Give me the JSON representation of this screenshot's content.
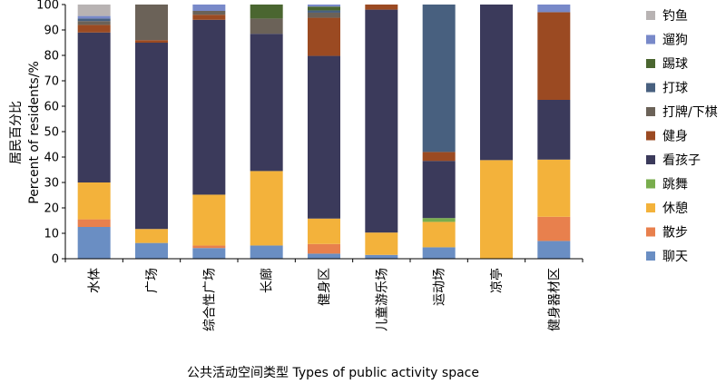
{
  "chart_data": {
    "type": "bar",
    "stacked": true,
    "ylabel_cn": "居民百分比",
    "ylabel_en": "Percent of residents/%",
    "xlabel": "公共活动空间类型 Types of public activity space",
    "ylim": [
      0,
      100
    ],
    "yticks": [
      "0",
      "10",
      "20",
      "30",
      "40",
      "50",
      "60",
      "70",
      "80",
      "90",
      "100"
    ],
    "grid": false,
    "legend_position": "right",
    "categories": [
      "水体",
      "广场",
      "综合性广场",
      "长廊",
      "健身区",
      "儿童游乐场",
      "运动场",
      "凉亭",
      "健身器材区"
    ],
    "series": [
      {
        "name": "聊天",
        "color": "#6a8ec3",
        "values": [
          12.5,
          6.2,
          4.2,
          5.2,
          2.0,
          1.5,
          4.5,
          0.0,
          7.0
        ]
      },
      {
        "name": "散步",
        "color": "#e8804d",
        "values": [
          3.0,
          0.0,
          1.0,
          0.0,
          3.8,
          0.0,
          0.0,
          0.0,
          9.5
        ]
      },
      {
        "name": "休憩",
        "color": "#f3b23b",
        "values": [
          14.5,
          5.5,
          20.0,
          29.3,
          10.0,
          8.8,
          10.0,
          38.8,
          22.5
        ]
      },
      {
        "name": "跳舞",
        "color": "#79ad4d",
        "values": [
          0.0,
          0.0,
          0.0,
          0.0,
          0.0,
          0.0,
          1.5,
          0.0,
          0.0
        ]
      },
      {
        "name": "看孩子",
        "color": "#3b3a5b",
        "values": [
          59.0,
          73.3,
          68.8,
          54.0,
          64.0,
          87.7,
          22.5,
          61.2,
          23.5
        ]
      },
      {
        "name": "健身",
        "color": "#9b4a22",
        "values": [
          3.0,
          1.0,
          2.0,
          0.0,
          15.0,
          2.0,
          3.5,
          0.0,
          34.5
        ]
      },
      {
        "name": "打牌/下棋",
        "color": "#6b6258",
        "values": [
          1.5,
          14.0,
          1.5,
          6.0,
          2.0,
          0.0,
          0.0,
          0.0,
          0.0
        ]
      },
      {
        "name": "打球",
        "color": "#48607f",
        "values": [
          1.0,
          0.0,
          0.0,
          0.0,
          0.9,
          0.0,
          58.0,
          0.0,
          0.0
        ]
      },
      {
        "name": "踢球",
        "color": "#4a6630",
        "values": [
          0.0,
          0.0,
          0.0,
          5.5,
          1.5,
          0.0,
          0.0,
          0.0,
          0.0
        ]
      },
      {
        "name": "遛狗",
        "color": "#7889c9",
        "values": [
          1.0,
          0.0,
          2.5,
          0.0,
          0.8,
          0.0,
          0.0,
          0.0,
          3.0
        ]
      },
      {
        "name": "钓鱼",
        "color": "#b8b3b3",
        "values": [
          4.5,
          0.0,
          0.0,
          0.0,
          0.0,
          0.0,
          0.0,
          0.0,
          0.0
        ]
      }
    ],
    "legend_order": [
      "钓鱼",
      "遛狗",
      "踢球",
      "打球",
      "打牌/下棋",
      "健身",
      "看孩子",
      "跳舞",
      "休憩",
      "散步",
      "聊天"
    ]
  }
}
